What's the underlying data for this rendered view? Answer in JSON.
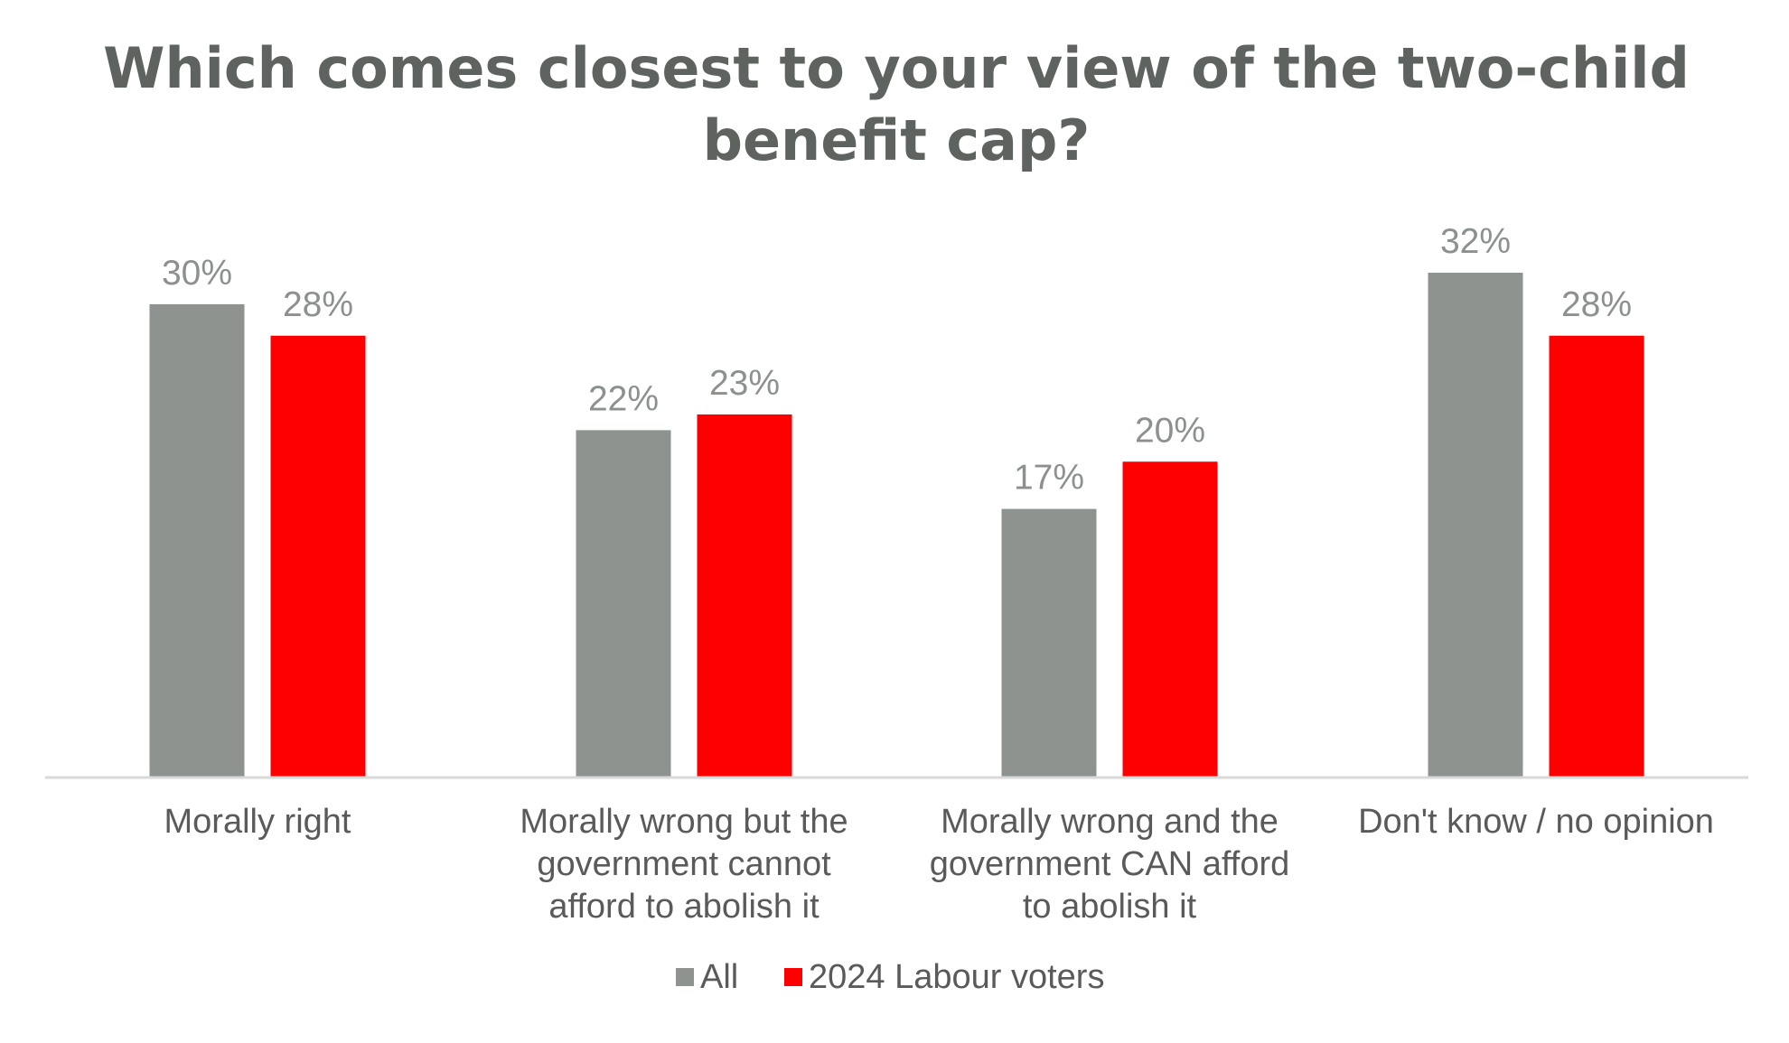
{
  "chart_data": {
    "type": "bar",
    "title_lines": [
      "Which comes closest to your view of the two-child",
      "benefit cap?"
    ],
    "categories": [
      [
        "Morally right"
      ],
      [
        "Morally wrong but the",
        "government cannot",
        "afford to abolish it"
      ],
      [
        "Morally wrong and the",
        "government CAN afford",
        "to abolish it"
      ],
      [
        "Don't know / no opinion"
      ]
    ],
    "series": [
      {
        "name": "All",
        "color": "#8e938f",
        "values": [
          30,
          22,
          17,
          32
        ],
        "labels": [
          "30%",
          "22%",
          "17%",
          "32%"
        ]
      },
      {
        "name": "2024 Labour voters",
        "color": "#ff0000",
        "values": [
          28,
          23,
          20,
          28
        ],
        "labels": [
          "28%",
          "23%",
          "20%",
          "28%"
        ]
      }
    ],
    "ylim": [
      0,
      32
    ],
    "xlabel": "",
    "ylabel": "",
    "grid": false,
    "legend": "bottom-center",
    "axis_color": "#d9d9d9"
  }
}
